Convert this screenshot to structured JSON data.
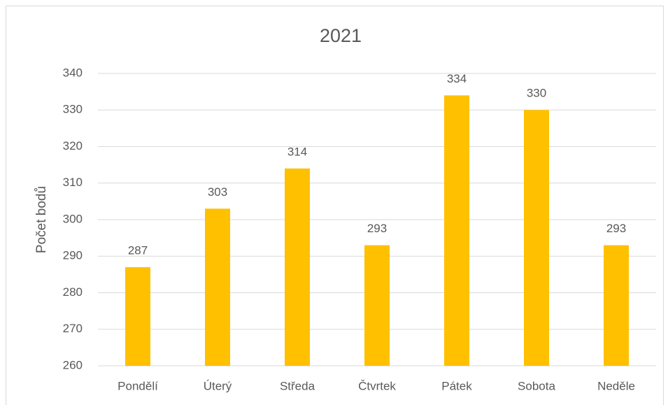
{
  "chart_data": {
    "type": "bar",
    "title": "2021",
    "y_label": "Počet bodů",
    "categories": [
      "Pondělí",
      "Úterý",
      "Středa",
      "Čtvrtek",
      "Pátek",
      "Sobota",
      "Neděle"
    ],
    "values": [
      287,
      303,
      314,
      293,
      334,
      330,
      293
    ],
    "color": "#ffc000",
    "ylim": [
      260,
      340
    ],
    "yticks": [
      260,
      270,
      280,
      290,
      300,
      310,
      320,
      330,
      340
    ],
    "grid": true,
    "data_labels": true
  }
}
